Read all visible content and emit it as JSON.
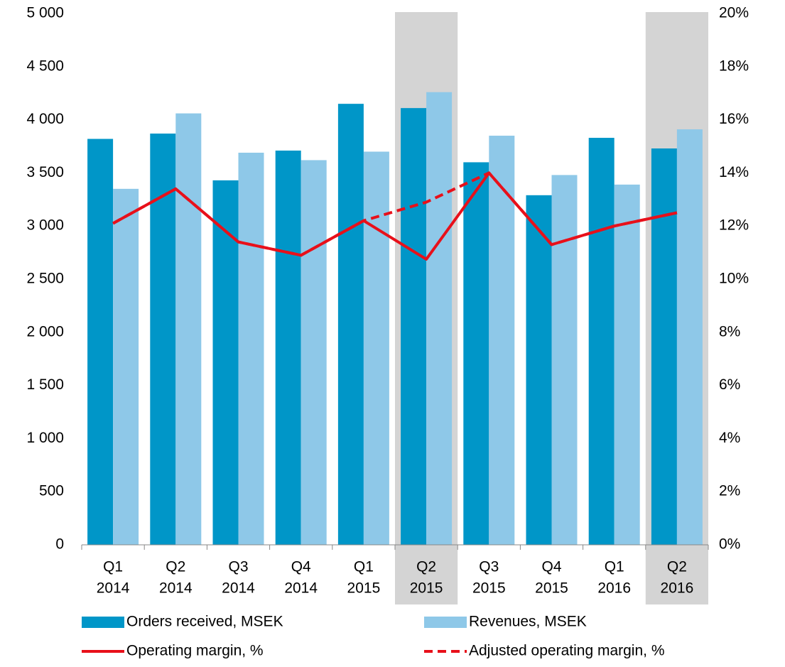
{
  "chart_data": {
    "type": "bar_line",
    "categories": [
      [
        "Q1",
        "2014"
      ],
      [
        "Q2",
        "2014"
      ],
      [
        "Q3",
        "2014"
      ],
      [
        "Q4",
        "2014"
      ],
      [
        "Q1",
        "2015"
      ],
      [
        "Q2",
        "2015"
      ],
      [
        "Q3",
        "2015"
      ],
      [
        "Q4",
        "2015"
      ],
      [
        "Q1",
        "2016"
      ],
      [
        "Q2",
        "2016"
      ]
    ],
    "highlight": [
      5,
      9
    ],
    "highlight_color": "#d4d4d4",
    "series": [
      {
        "name": "Orders received, MSEK",
        "type": "bar",
        "color": "#0096c8",
        "values": [
          3820,
          3870,
          3430,
          3710,
          4150,
          4110,
          3600,
          3290,
          3830,
          3730
        ]
      },
      {
        "name": "Revenues, MSEK",
        "type": "bar",
        "color": "#8ec8e8",
        "values": [
          3350,
          4060,
          3690,
          3620,
          3700,
          4260,
          3850,
          3480,
          3390,
          3910
        ]
      },
      {
        "name": "Operating margin, %",
        "type": "line",
        "axis": "y2",
        "color": "#e8101a",
        "values": [
          12.1,
          13.4,
          11.4,
          10.9,
          12.2,
          10.75,
          14.0,
          11.3,
          12.0,
          12.5
        ]
      },
      {
        "name": "Adjusted operating margin, %",
        "type": "line",
        "dashed": true,
        "axis": "y2",
        "color": "#e8101a",
        "values": [
          12.1,
          13.4,
          11.4,
          10.9,
          12.2,
          12.9,
          14.0,
          11.3,
          12.0,
          12.5
        ]
      }
    ],
    "ylim": [
      0,
      5000
    ],
    "yticks": [
      0,
      500,
      {
        "value": 1000,
        "label": "1 000"
      },
      {
        "value": 1500,
        "label": "1 500"
      },
      {
        "value": 2000,
        "label": "2 000"
      },
      {
        "value": 2500,
        "label": "2 500"
      },
      {
        "value": 3000,
        "label": "3 000"
      },
      {
        "value": 3500,
        "label": "3 500"
      },
      {
        "value": 4000,
        "label": "4 000"
      },
      {
        "value": 4500,
        "label": "4 500"
      },
      {
        "value": 5000,
        "label": "5 000"
      }
    ],
    "y2lim": [
      0,
      20
    ],
    "y2ticks": [
      {
        "value": 0,
        "label": "0%"
      },
      {
        "value": 2,
        "label": "2%"
      },
      {
        "value": 4,
        "label": "4%"
      },
      {
        "value": 6,
        "label": "6%"
      },
      {
        "value": 8,
        "label": "8%"
      },
      {
        "value": 10,
        "label": "10%"
      },
      {
        "value": 12,
        "label": "12%"
      },
      {
        "value": 14,
        "label": "14%"
      },
      {
        "value": 16,
        "label": "16%"
      },
      {
        "value": 18,
        "label": "18%"
      },
      {
        "value": 20,
        "label": "20%"
      }
    ],
    "grid": false
  }
}
